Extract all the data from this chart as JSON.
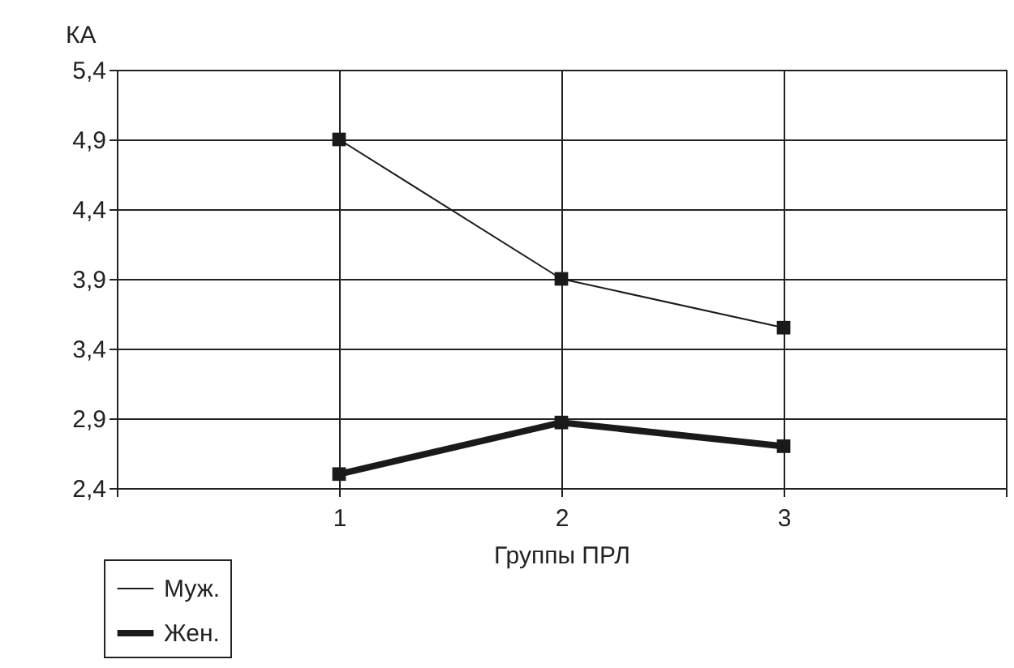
{
  "chart_data": {
    "type": "line",
    "xlabel": "Группы ПРЛ",
    "ylabel": "КА",
    "x": [
      1,
      2,
      3
    ],
    "series": [
      {
        "name": "Муж.",
        "color": "#1a1a1a",
        "values": [
          4.9,
          3.9,
          3.55
        ]
      },
      {
        "name": "Жен.",
        "color": "#1a1a1a",
        "values": [
          2.5,
          2.87,
          2.7
        ]
      }
    ],
    "xlim": [
      0,
      4
    ],
    "xticks": [
      {
        "value": 0,
        "label": null
      },
      1,
      2,
      3,
      {
        "value": 4,
        "label": null
      }
    ],
    "ylim": [
      2.4,
      5.4
    ],
    "yticks": [
      {
        "value": 2.4,
        "label": "2,4"
      },
      {
        "value": 2.9,
        "label": "2,9"
      },
      {
        "value": 3.4,
        "label": "3,4"
      },
      {
        "value": 3.9,
        "label": "3,9"
      },
      {
        "value": 4.4,
        "label": "4,4"
      },
      {
        "value": 4.9,
        "label": "4,9"
      },
      {
        "value": 5.4,
        "label": "5,4"
      }
    ],
    "grid": true,
    "legend": "bottom left",
    "marker": "square",
    "line_style": "solid"
  }
}
